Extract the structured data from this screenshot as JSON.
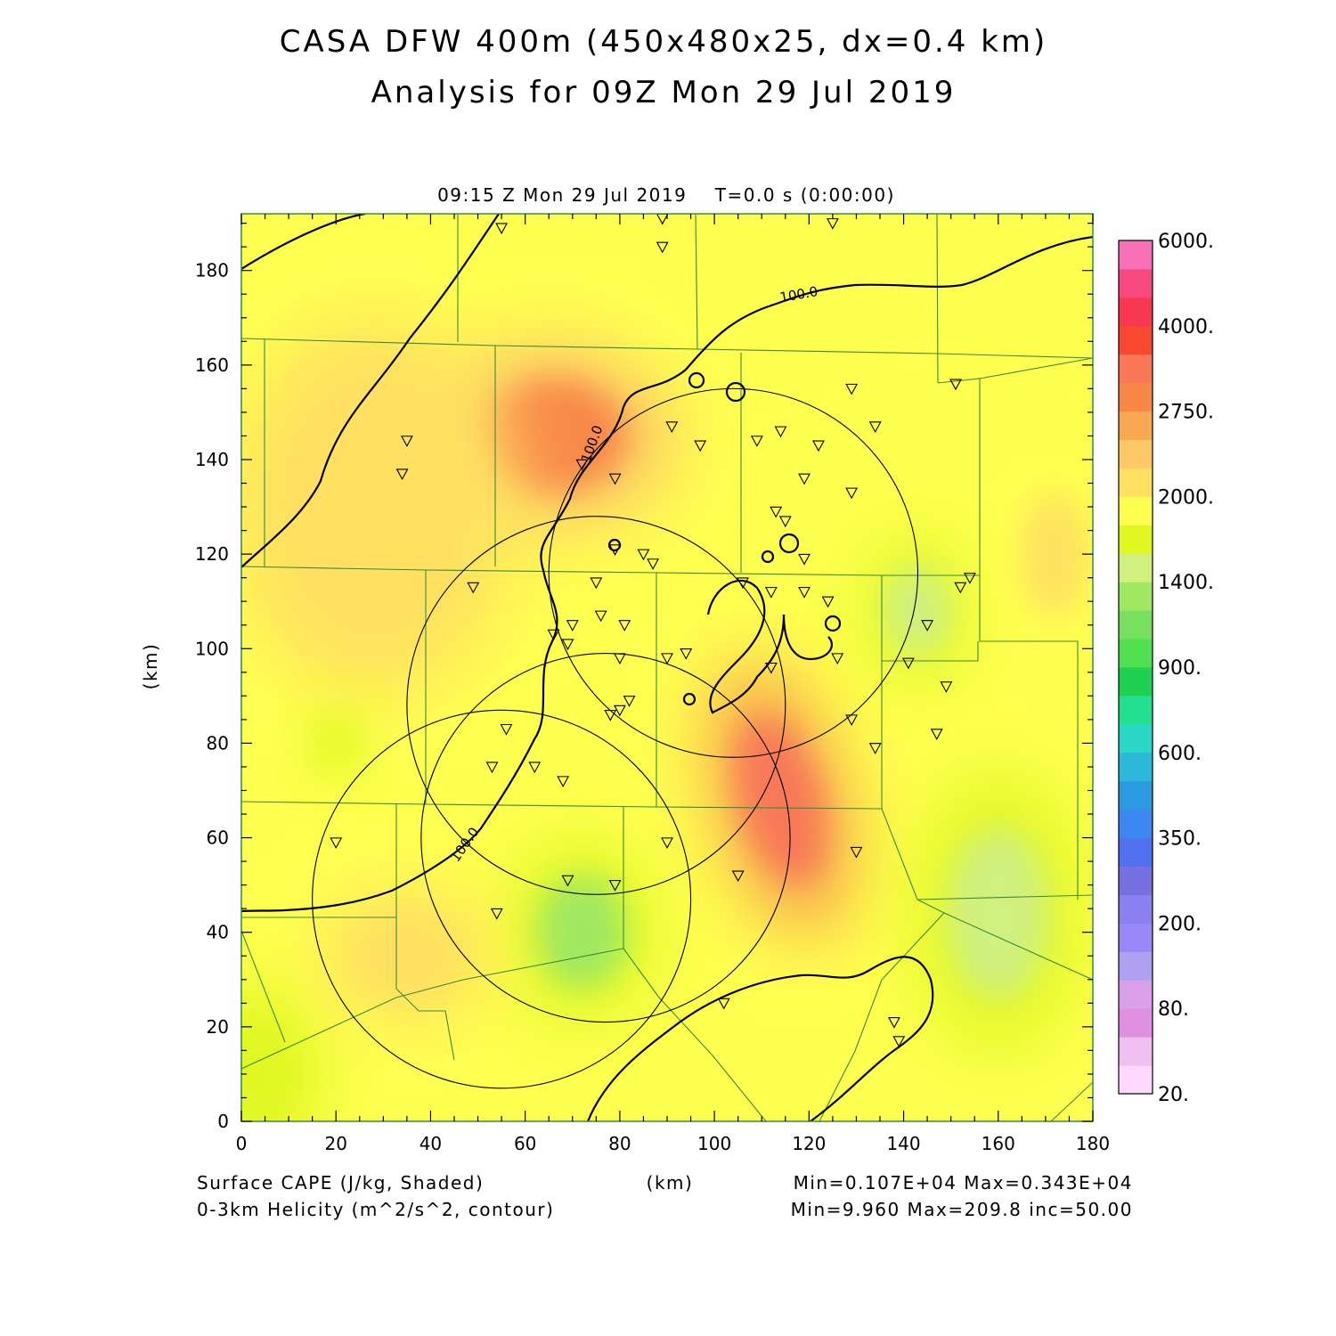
{
  "chart_data": {
    "type": "heatmap",
    "title": "CASA DFW 400m (450x480x25, dx=0.4 km)",
    "subtitle": "Analysis for 09Z Mon 29 Jul 2019",
    "time_label": "09:15 Z Mon 29 Jul 2019    T=0.0 s (0:00:00)",
    "xlabel": "(km)",
    "ylabel": "(km)",
    "xlim": [
      0,
      180
    ],
    "ylim": [
      0,
      192
    ],
    "x_ticks": [
      0,
      20,
      40,
      60,
      80,
      100,
      120,
      140,
      160,
      180
    ],
    "y_ticks": [
      0,
      20,
      40,
      60,
      80,
      100,
      120,
      140,
      160,
      180
    ],
    "x_tick_labels": [
      "0",
      "20",
      "40",
      "60",
      "80",
      "100",
      "120",
      "140",
      "160",
      "180"
    ],
    "y_tick_labels": [
      "0",
      "20",
      "40",
      "60",
      "80",
      "100",
      "120",
      "140",
      "160",
      "180"
    ],
    "shaded_field": {
      "label": "Surface CAPE (J/kg, Shaded)",
      "stats": "Min=0.107E+04 Max=0.343E+04",
      "min": 1070,
      "max": 3430,
      "base_value": 1900,
      "features": [
        {
          "x": 114,
          "y": 68,
          "value": 3200,
          "rx": 14,
          "ry": 30,
          "rot": -15
        },
        {
          "x": 66,
          "y": 145,
          "value": 2750,
          "rx": 26,
          "ry": 20,
          "rot": 0
        },
        {
          "x": 28,
          "y": 130,
          "value": 2100,
          "rx": 30,
          "ry": 40,
          "rot": 0
        },
        {
          "x": 72,
          "y": 40,
          "value": 1350,
          "rx": 16,
          "ry": 20,
          "rot": 0
        },
        {
          "x": 160,
          "y": 44,
          "value": 1500,
          "rx": 18,
          "ry": 30,
          "rot": 0
        },
        {
          "x": 143,
          "y": 108,
          "value": 1500,
          "rx": 12,
          "ry": 16,
          "rot": 0
        },
        {
          "x": 20,
          "y": 80,
          "value": 1600,
          "rx": 6,
          "ry": 8,
          "rot": 0
        },
        {
          "x": 3,
          "y": 10,
          "value": 1650,
          "rx": 14,
          "ry": 20,
          "rot": 0
        },
        {
          "x": 172,
          "y": 120,
          "value": 2050,
          "rx": 12,
          "ry": 22,
          "rot": 0
        },
        {
          "x": 35,
          "y": 35,
          "value": 2100,
          "rx": 18,
          "ry": 14,
          "rot": 0
        },
        {
          "x": 150,
          "y": 175,
          "value": 1900,
          "rx": 24,
          "ry": 16,
          "rot": 0
        },
        {
          "x": 110,
          "y": 180,
          "value": 1850,
          "rx": 30,
          "ry": 14,
          "rot": 0
        }
      ]
    },
    "contour_field": {
      "label": "0-3km Helicity (m^2/s^2, contour)",
      "stats": "Min=9.960 Max=209.8 inc=50.00",
      "labels": [
        {
          "text": "100.0",
          "x": 118,
          "y": 174,
          "angle": -10
        },
        {
          "text": "100.0",
          "x": 75,
          "y": 143,
          "angle": -70
        },
        {
          "text": "100.0",
          "x": 48,
          "y": 58,
          "angle": -55
        }
      ]
    },
    "colorbar": {
      "colors": [
        "#ffd8ff",
        "#f0c0f0",
        "#e090e0",
        "#d8a0e8",
        "#b0a0f0",
        "#9a88f8",
        "#8a80f0",
        "#7870e0",
        "#5070f0",
        "#3c88f0",
        "#2c9ae0",
        "#2cb8d8",
        "#2ad8c8",
        "#22e090",
        "#20d050",
        "#50e050",
        "#78e060",
        "#a0e860",
        "#d0f080",
        "#e0f820",
        "#ffff50",
        "#ffe060",
        "#fcc868",
        "#f8a850",
        "#f88848",
        "#f87858",
        "#f84830",
        "#f83850",
        "#f84880",
        "#f870b8"
      ],
      "labels": [
        "20.",
        "80.",
        "200.",
        "350.",
        "600.",
        "900.",
        "1400.",
        "2000.",
        "2750.",
        "4000.",
        "6000."
      ],
      "label_positions": [
        0,
        3,
        6,
        9,
        12,
        15,
        18,
        21,
        24,
        27,
        30
      ]
    },
    "radar_circles": [
      {
        "cx": 104,
        "cy": 116,
        "r": 39
      },
      {
        "cx": 75,
        "cy": 88,
        "r": 40
      },
      {
        "cx": 77,
        "cy": 60,
        "r": 39
      },
      {
        "cx": 55,
        "cy": 47,
        "r": 40
      }
    ],
    "stations": [
      [
        55,
        189
      ],
      [
        89,
        191
      ],
      [
        89,
        185
      ],
      [
        125,
        190
      ],
      [
        35,
        144
      ],
      [
        34,
        137
      ],
      [
        91,
        147
      ],
      [
        97,
        143
      ],
      [
        109,
        144
      ],
      [
        114,
        146
      ],
      [
        122,
        143
      ],
      [
        119,
        136
      ],
      [
        129,
        133
      ],
      [
        129,
        155
      ],
      [
        134,
        147
      ],
      [
        151,
        156
      ],
      [
        79,
        136
      ],
      [
        72,
        139
      ],
      [
        113,
        129
      ],
      [
        115,
        127
      ],
      [
        79,
        121
      ],
      [
        85,
        120
      ],
      [
        87,
        118
      ],
      [
        119,
        119
      ],
      [
        49,
        113
      ],
      [
        75,
        114
      ],
      [
        106,
        114
      ],
      [
        112,
        112
      ],
      [
        119,
        112
      ],
      [
        124,
        110
      ],
      [
        154,
        115
      ],
      [
        152,
        113
      ],
      [
        66,
        103
      ],
      [
        70,
        105
      ],
      [
        76,
        107
      ],
      [
        81,
        105
      ],
      [
        69,
        101
      ],
      [
        80,
        98
      ],
      [
        90,
        98
      ],
      [
        94,
        99
      ],
      [
        112,
        96
      ],
      [
        126,
        98
      ],
      [
        141,
        97
      ],
      [
        145,
        105
      ],
      [
        149,
        92
      ],
      [
        78,
        86
      ],
      [
        80,
        87
      ],
      [
        82,
        89
      ],
      [
        129,
        85
      ],
      [
        134,
        79
      ],
      [
        147,
        82
      ],
      [
        56,
        83
      ],
      [
        53,
        75
      ],
      [
        62,
        75
      ],
      [
        68,
        72
      ],
      [
        20,
        59
      ],
      [
        90,
        59
      ],
      [
        130,
        57
      ],
      [
        105,
        52
      ],
      [
        69,
        51
      ],
      [
        79,
        50
      ],
      [
        54,
        44
      ],
      [
        102,
        25
      ],
      [
        138,
        21
      ],
      [
        139,
        17
      ]
    ],
    "footer_xlabel": "(km)"
  }
}
